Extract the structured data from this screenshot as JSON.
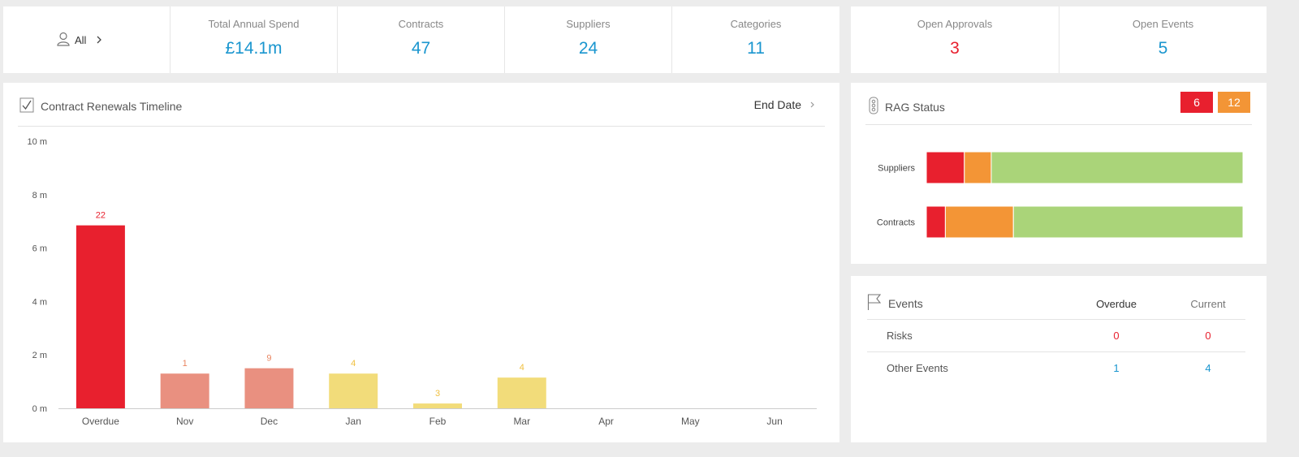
{
  "filter": {
    "label": "All"
  },
  "stats": [
    {
      "label": "Total Annual Spend",
      "value": "£14.1m"
    },
    {
      "label": "Contracts",
      "value": "47"
    },
    {
      "label": "Suppliers",
      "value": "24"
    },
    {
      "label": "Categories",
      "value": "11"
    }
  ],
  "approvals": {
    "label": "Open Approvals",
    "value": "3"
  },
  "events_count": {
    "label": "Open Events",
    "value": "5"
  },
  "timeline": {
    "title": "Contract Renewals Timeline",
    "sort_label": "End Date"
  },
  "colors": {
    "red": "#e8202e",
    "salmon": "#e99080",
    "yellow": "#f2dc7a",
    "orange": "#f39536",
    "green": "#aad479",
    "blue": "#1a96cf"
  },
  "chart_data": {
    "type": "bar",
    "categories": [
      "Overdue",
      "Nov",
      "Dec",
      "Jan",
      "Feb",
      "Mar",
      "Apr",
      "May",
      "Jun"
    ],
    "values": [
      6.85,
      1.3,
      1.5,
      1.3,
      0.18,
      1.15,
      0,
      0,
      0
    ],
    "data_labels": [
      "22",
      "1",
      "9",
      "4",
      "3",
      "4",
      "",
      "",
      ""
    ],
    "bar_colors": [
      "#e8202e",
      "#e99080",
      "#e99080",
      "#f2dc7a",
      "#f2dc7a",
      "#f2dc7a",
      "#f2dc7a",
      "#f2dc7a",
      "#f2dc7a"
    ],
    "label_colors": [
      "#e8202e",
      "#e98560",
      "#e98560",
      "#f0c040",
      "#f0c040",
      "#f0c040",
      "#f0c040",
      "#f0c040",
      "#f0c040"
    ],
    "yticks": [
      "0 m",
      "2 m",
      "4 m",
      "6 m",
      "8 m",
      "10 m"
    ],
    "ylim": [
      0,
      10
    ],
    "title": "Contract Renewals Timeline",
    "xlabel": "",
    "ylabel": "",
    "grid": false
  },
  "rag": {
    "title": "RAG Status",
    "legend": [
      {
        "value": "6",
        "color": "#e8202e"
      },
      {
        "value": "12",
        "color": "#f39536"
      }
    ],
    "rows": [
      {
        "label": "Suppliers",
        "red": 0.12,
        "amber": 0.085,
        "green": 0.795
      },
      {
        "label": "Contracts",
        "red": 0.06,
        "amber": 0.215,
        "green": 0.725
      }
    ]
  },
  "events": {
    "title": "Events",
    "col_overdue": "Overdue",
    "col_current": "Current",
    "rows": [
      {
        "label": "Risks",
        "overdue": "0",
        "current": "0"
      },
      {
        "label": "Other Events",
        "overdue": "1",
        "current": "4"
      }
    ]
  }
}
